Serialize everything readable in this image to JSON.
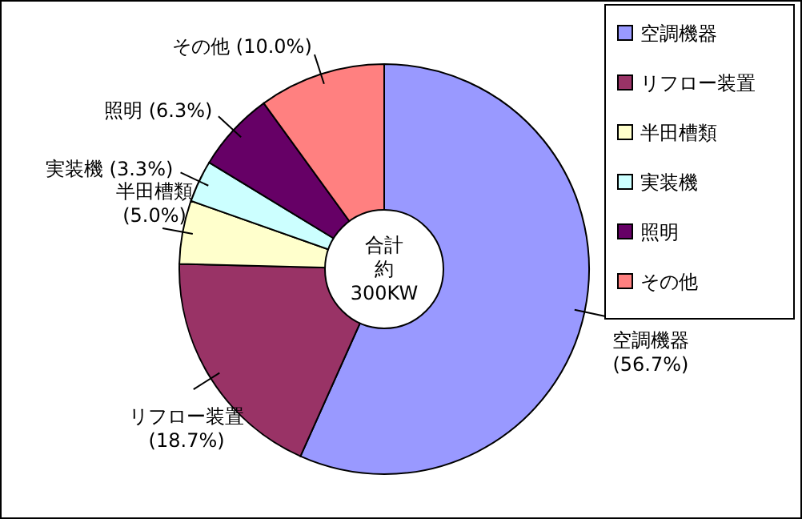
{
  "chart_data": {
    "type": "donut",
    "categories": [
      "空調機器",
      "リフロー装置",
      "半田槽類",
      "実装機",
      "照明",
      "その他"
    ],
    "values": [
      56.7,
      18.7,
      5.0,
      3.3,
      6.3,
      10.0
    ],
    "colors": [
      "#9999ff",
      "#993366",
      "#ffffcc",
      "#ccffff",
      "#660066",
      "#ff8080"
    ],
    "value_labels": [
      "(56.7%)",
      "(18.7%)",
      "(5.0%)",
      "(3.3%)",
      "(6.3%)",
      "(10.0%)"
    ],
    "annotations": [
      "合計",
      "約",
      "300KW"
    ],
    "legend": "right"
  }
}
